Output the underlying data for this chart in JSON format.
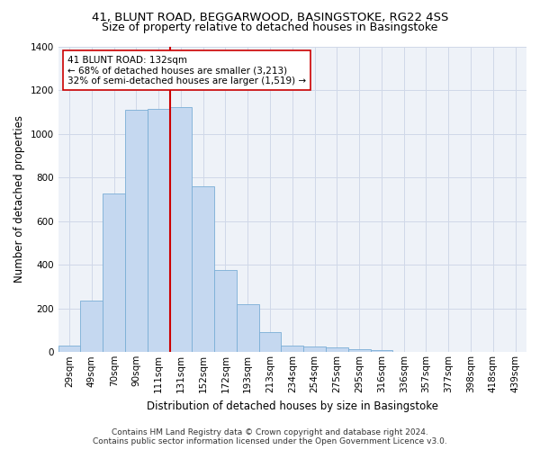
{
  "title1": "41, BLUNT ROAD, BEGGARWOOD, BASINGSTOKE, RG22 4SS",
  "title2": "Size of property relative to detached houses in Basingstoke",
  "xlabel": "Distribution of detached houses by size in Basingstoke",
  "ylabel": "Number of detached properties",
  "categories": [
    "29sqm",
    "49sqm",
    "70sqm",
    "90sqm",
    "111sqm",
    "131sqm",
    "152sqm",
    "172sqm",
    "193sqm",
    "213sqm",
    "234sqm",
    "254sqm",
    "275sqm",
    "295sqm",
    "316sqm",
    "336sqm",
    "357sqm",
    "377sqm",
    "398sqm",
    "418sqm",
    "439sqm"
  ],
  "values": [
    30,
    235,
    725,
    1110,
    1115,
    1120,
    760,
    375,
    220,
    90,
    30,
    25,
    20,
    15,
    10,
    0,
    0,
    0,
    0,
    0,
    0
  ],
  "bar_color": "#c5d8f0",
  "bar_edge_color": "#7aaed6",
  "vline_color": "#cc0000",
  "annotation_line1": "41 BLUNT ROAD: 132sqm",
  "annotation_line2": "← 68% of detached houses are smaller (3,213)",
  "annotation_line3": "32% of semi-detached houses are larger (1,519) →",
  "annotation_box_color": "#ffffff",
  "annotation_box_edge_color": "#cc0000",
  "ylim": [
    0,
    1400
  ],
  "yticks": [
    0,
    200,
    400,
    600,
    800,
    1000,
    1200,
    1400
  ],
  "grid_color": "#d0d8e8",
  "background_color": "#eef2f8",
  "footnote": "Contains HM Land Registry data © Crown copyright and database right 2024.\nContains public sector information licensed under the Open Government Licence v3.0.",
  "title1_fontsize": 9.5,
  "title2_fontsize": 9,
  "axis_label_fontsize": 8.5,
  "tick_fontsize": 7.5,
  "annotation_fontsize": 7.5,
  "footnote_fontsize": 6.5,
  "bar_width": 1.0,
  "vline_idx": 5
}
